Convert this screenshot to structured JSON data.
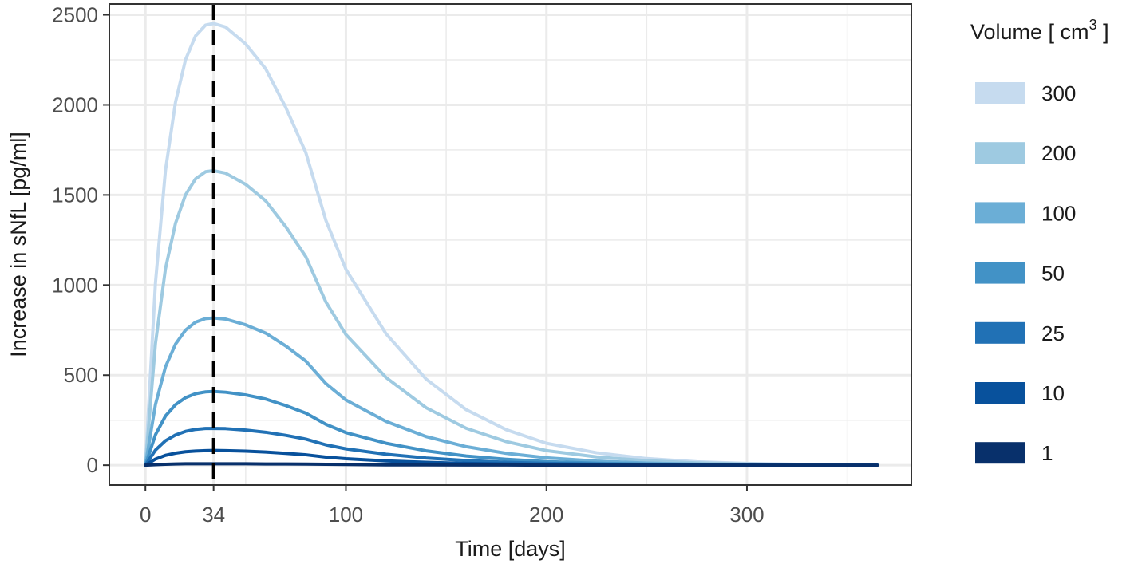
{
  "chart_data": {
    "type": "line",
    "title": "",
    "xlabel": "Time [days]",
    "ylabel": "Increase in sNfL [pg/ml]",
    "xlim": [
      -18,
      382
    ],
    "ylim": [
      -110,
      2560
    ],
    "x_ticks": [
      0,
      34,
      100,
      200,
      300
    ],
    "x_tick_labels": [
      "0",
      "34",
      "100",
      "200",
      "300"
    ],
    "y_ticks": [
      0,
      500,
      1000,
      1500,
      2000,
      2500
    ],
    "y_tick_labels": [
      "0",
      "500",
      "1000",
      "1500",
      "2000",
      "2500"
    ],
    "x_minor_grid": [
      50,
      150,
      250,
      350
    ],
    "y_minor_grid": [
      250,
      750,
      1250,
      1750,
      2250
    ],
    "grid": true,
    "reference_line": {
      "x": 34,
      "style": "dashed",
      "color": "#000000"
    },
    "legend": {
      "title_prefix": "Volume [ cm",
      "title_superscript": "3",
      "title_suffix": " ]",
      "placement": "right"
    },
    "x": [
      0,
      5,
      10,
      15,
      20,
      25,
      30,
      34,
      40,
      50,
      60,
      70,
      80,
      90,
      100,
      120,
      140,
      160,
      180,
      200,
      225,
      250,
      275,
      300,
      325,
      350,
      365
    ],
    "series": [
      {
        "name": "300",
        "color": "#c6dbef",
        "values": [
          0,
          1012,
          1637,
          2015,
          2251,
          2383,
          2443,
          2452,
          2432,
          2338,
          2200,
          1986,
          1735,
          1359,
          1087,
          730,
          478,
          308,
          197,
          122,
          69,
          37,
          19,
          10,
          5,
          2,
          1
        ]
      },
      {
        "name": "200",
        "color": "#9ecae1",
        "values": [
          0,
          675,
          1091,
          1343,
          1501,
          1589,
          1629,
          1635,
          1621,
          1559,
          1467,
          1324,
          1157,
          906,
          725,
          487,
          319,
          205,
          131,
          81,
          46,
          25,
          13,
          7,
          3,
          1,
          1
        ]
      },
      {
        "name": "100",
        "color": "#6baed6",
        "values": [
          0,
          337,
          546,
          672,
          750,
          794,
          814,
          817,
          811,
          779,
          733,
          662,
          578,
          453,
          362,
          243,
          159,
          103,
          66,
          41,
          23,
          12,
          6,
          3,
          2,
          1,
          0
        ]
      },
      {
        "name": "50",
        "color": "#4292c6",
        "values": [
          0,
          169,
          273,
          336,
          375,
          397,
          407,
          409,
          405,
          390,
          367,
          331,
          289,
          227,
          181,
          122,
          80,
          51,
          33,
          20,
          11,
          6,
          3,
          2,
          1,
          0,
          0
        ]
      },
      {
        "name": "25",
        "color": "#2171b5",
        "values": [
          0,
          84,
          136,
          168,
          188,
          199,
          204,
          204,
          203,
          195,
          183,
          166,
          145,
          113,
          91,
          61,
          40,
          26,
          16,
          10,
          6,
          3,
          2,
          1,
          0,
          0,
          0
        ]
      },
      {
        "name": "10",
        "color": "#08519c",
        "values": [
          0,
          34,
          55,
          67,
          75,
          79,
          81,
          82,
          81,
          78,
          73,
          66,
          58,
          45,
          36,
          24,
          16,
          10,
          7,
          4,
          2,
          1,
          1,
          0,
          0,
          0,
          0
        ]
      },
      {
        "name": "1",
        "color": "#08306b",
        "values": [
          0,
          3,
          5,
          7,
          8,
          8,
          8,
          8,
          8,
          8,
          7,
          7,
          6,
          5,
          4,
          2,
          2,
          1,
          1,
          0,
          0,
          0,
          0,
          0,
          0,
          0,
          0
        ]
      }
    ]
  }
}
